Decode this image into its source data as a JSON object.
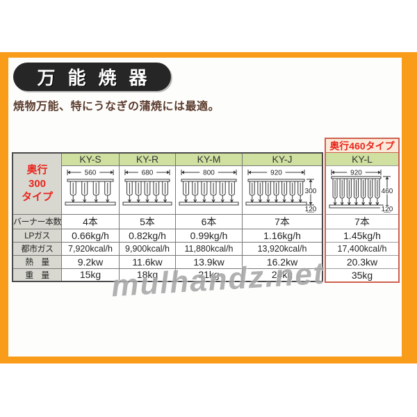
{
  "colors": {
    "frame": "#f89c1a",
    "green": "#cfe0a0",
    "graycell": "#d8d8d0",
    "red": "#e8251d",
    "salmon": "#cf5f4d",
    "peach": "#fbead9",
    "subtitle": "#5a3a2c"
  },
  "header": {
    "title": "万能焼器",
    "subtitle": "焼物万能、特にうなぎの蒲焼には最適。"
  },
  "depth460": {
    "label": "奥行460タイプ"
  },
  "table": {
    "corner": {
      "l1": "奥行",
      "l2": "300",
      "l3": "タイプ"
    },
    "models": [
      {
        "id": "KY-S",
        "dim": "560",
        "burners": 4
      },
      {
        "id": "KY-R",
        "dim": "680",
        "burners": 5
      },
      {
        "id": "KY-M",
        "dim": "800",
        "burners": 6
      },
      {
        "id": "KY-J",
        "dim": "920",
        "burners": 7,
        "side_h": "300",
        "side_f": "120"
      },
      {
        "id": "KY-L",
        "dim": "920",
        "burners": 7,
        "side_h": "460",
        "side_f": "120",
        "tall": true
      }
    ],
    "rows": [
      {
        "label": "バーナー本数",
        "values": [
          "4本",
          "5本",
          "6本",
          "7本",
          "7本"
        ]
      },
      {
        "label": "LPガス",
        "values": [
          "0.66kg/h",
          "0.82kg/h",
          "0.99kg/h",
          "1.16kg/h",
          "1.45kg/h"
        ]
      },
      {
        "label": "都市ガス",
        "values": [
          "7,920kcal/h",
          "9,900kcal/h",
          "11,880kcal/h",
          "13,920kcal/h",
          "17,400kcal/h"
        ]
      },
      {
        "label": "熱　量",
        "values": [
          "9.2kw",
          "11.6kw",
          "13.9kw",
          "16.2kw",
          "20.3kw"
        ]
      },
      {
        "label": "重　量",
        "values": [
          "15kg",
          "18kg",
          "21kg",
          "24kg",
          "35kg"
        ]
      }
    ]
  },
  "watermark": {
    "text": "mulhandz.net"
  }
}
